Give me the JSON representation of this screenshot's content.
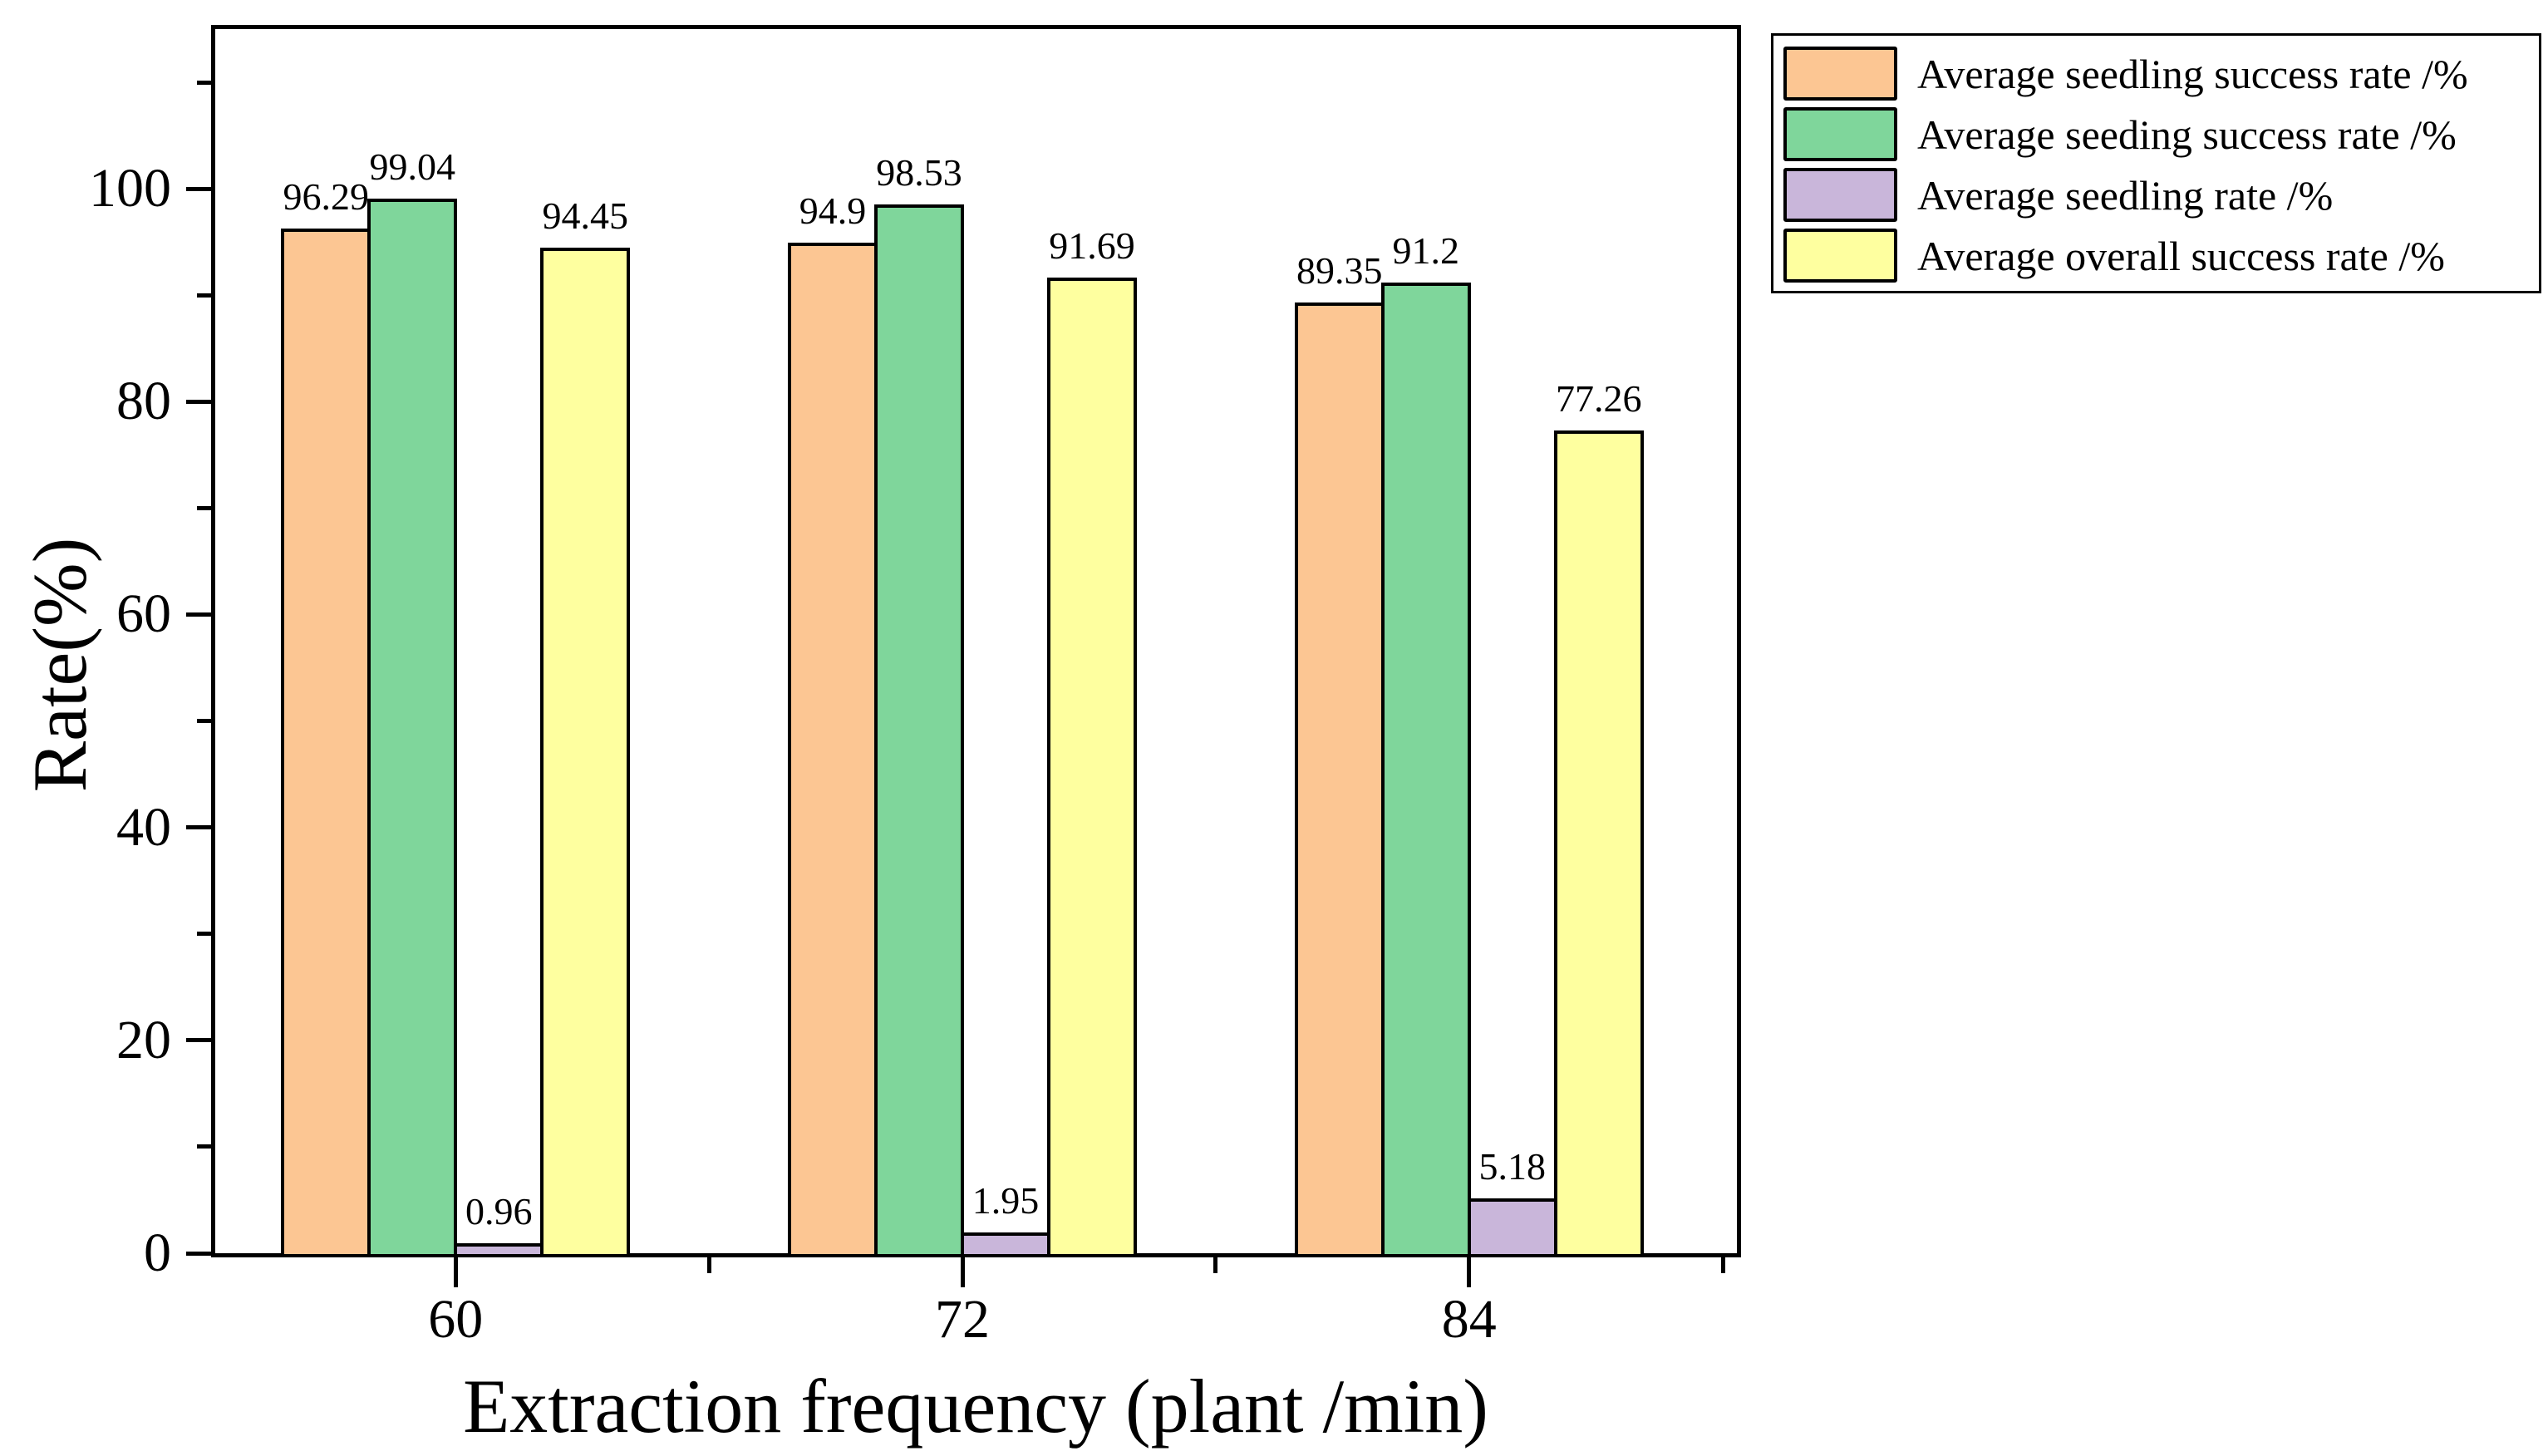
{
  "chart_data": {
    "type": "bar",
    "title": "",
    "xlabel": "Extraction frequency (plant /min)",
    "ylabel": "Rate(%)",
    "categories": [
      "60",
      "72",
      "84"
    ],
    "series": [
      {
        "name": "Average seedling success rate /%",
        "color": "#fcc693",
        "values": [
          96.29,
          94.9,
          89.35
        ]
      },
      {
        "name": "Average seeding success rate /%",
        "color": "#7fd69b",
        "values": [
          99.04,
          98.53,
          91.2
        ]
      },
      {
        "name": "Average seedling rate /%",
        "color": "#c9b6da",
        "values": [
          0.96,
          1.95,
          5.18
        ]
      },
      {
        "name": "Average overall success rate /%",
        "color": "#feff9f",
        "values": [
          94.45,
          91.69,
          77.26
        ]
      }
    ],
    "value_labels": [
      [
        "96.29",
        "94.9",
        "89.35"
      ],
      [
        "99.04",
        "98.53",
        "91.2"
      ],
      [
        "0.96",
        "1.95",
        "5.18"
      ],
      [
        "94.45",
        "91.69",
        "77.26"
      ]
    ],
    "ylim": [
      0,
      115
    ],
    "yticks_major": [
      0,
      20,
      40,
      60,
      80,
      100
    ],
    "yticks_minor": [
      10,
      30,
      50,
      70,
      90,
      110
    ],
    "grid": false,
    "legend_position": "outside-top-right",
    "bar_border_color": "#000000",
    "background_color": "#ffffff"
  }
}
